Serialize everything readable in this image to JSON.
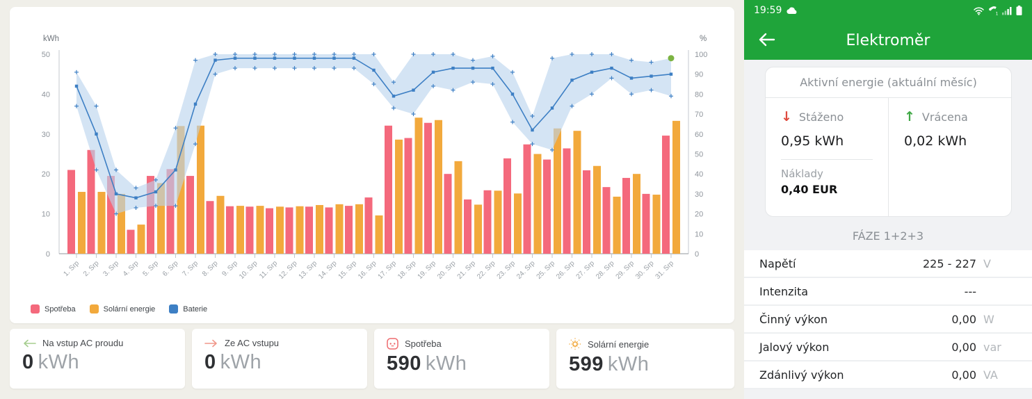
{
  "dashboard": {
    "stat_cards": [
      {
        "icon": "arrow-left-icon",
        "label": "Na vstup AC proudu",
        "value": "0",
        "unit": "kWh"
      },
      {
        "icon": "arrow-right-icon",
        "label": "Ze AC vstupu",
        "value": "0",
        "unit": "kWh"
      },
      {
        "icon": "socket-icon",
        "label": "Spotřeba",
        "value": "590",
        "unit": "kWh"
      },
      {
        "icon": "sun-icon",
        "label": "Solární energie",
        "value": "599",
        "unit": "kWh"
      }
    ]
  },
  "phone": {
    "status_bar": {
      "time": "19:59",
      "icons": [
        "cloud-icon",
        "wifi-icon",
        "wifi-calling-icon",
        "signal-icon",
        "battery-icon"
      ]
    },
    "header": {
      "title": "Elektroměr",
      "back_icon": "back-arrow-icon"
    },
    "energy_card": {
      "title": "Aktivní energie (aktuální měsíc)",
      "left": {
        "arrow": "↓",
        "label": "Stáženo",
        "value": "0,95 kWh",
        "cost_label": "Náklady",
        "cost_value": "0,40 EUR"
      },
      "right": {
        "arrow": "↑",
        "label": "Vrácena",
        "value": "0,02 kWh"
      }
    },
    "phase_section": {
      "title": "FÁZE 1+2+3",
      "rows": [
        {
          "label": "Napětí",
          "value": "225 - 227",
          "unit": "V"
        },
        {
          "label": "Intenzita",
          "value": "---",
          "unit": ""
        },
        {
          "label": "Činný výkon",
          "value": "0,00",
          "unit": "W"
        },
        {
          "label": "Jalový výkon",
          "value": "0,00",
          "unit": "var"
        },
        {
          "label": "Zdánlivý výkon",
          "value": "0,00",
          "unit": "VA"
        }
      ]
    }
  },
  "chart_data": {
    "type": "bar",
    "note": "grouped bars on kWh axis + battery line with min-max band on % axis",
    "categories": [
      "1. Srp",
      "2. Srp",
      "3. Srp",
      "4. Srp",
      "5. Srp",
      "6. Srp",
      "7. Srp",
      "8. Srp",
      "9. Srp",
      "10. Srp",
      "11. Srp",
      "12. Srp",
      "13. Srp",
      "14. Srp",
      "15. Srp",
      "16. Srp",
      "17. Srp",
      "18. Srp",
      "19. Srp",
      "20. Srp",
      "21. Srp",
      "22. Srp",
      "23. Srp",
      "24. Srp",
      "25. Srp",
      "26. Srp",
      "27. Srp",
      "28. Srp",
      "29. Srp",
      "30. Srp",
      "31. Srp"
    ],
    "series": [
      {
        "name": "Spotřeba",
        "type": "bar",
        "axis": "kWh",
        "color": "#f4697c",
        "values": [
          21,
          26,
          19.5,
          6,
          19.5,
          21.2,
          19.5,
          13.2,
          11.9,
          11.8,
          11.4,
          11.6,
          11.8,
          11.6,
          12,
          14.1,
          32.1,
          29,
          32.8,
          20,
          13.6,
          15.9,
          23.9,
          27.4,
          23.6,
          26.4,
          20.9,
          16.7,
          19,
          15,
          29.6
        ]
      },
      {
        "name": "Solární energie",
        "type": "bar",
        "axis": "kWh",
        "color": "#f2a93c",
        "values": [
          15.5,
          15.5,
          15,
          7.3,
          17.7,
          32,
          32.1,
          14.5,
          12,
          12,
          11.8,
          11.9,
          12.2,
          12.4,
          12.4,
          9.6,
          28.6,
          34.1,
          33.5,
          23.2,
          12.3,
          15.8,
          15.1,
          25,
          31.4,
          30.8,
          22,
          14.3,
          20,
          14.8,
          33.3
        ]
      },
      {
        "name": "Baterie",
        "type": "line",
        "axis": "%",
        "color": "#3d7fc4",
        "band_color": "#b9d3ee",
        "values": [
          84,
          60,
          30,
          28,
          31,
          42,
          75,
          97,
          98,
          98,
          98,
          98,
          98,
          98,
          98,
          92,
          79,
          82,
          91,
          93,
          93,
          93,
          80,
          62,
          73,
          87,
          91,
          93,
          88,
          89,
          90
        ],
        "band_min": [
          74,
          42,
          20,
          23,
          24,
          24,
          55,
          90,
          93,
          93,
          93,
          93,
          93,
          93,
          93,
          85,
          73,
          70,
          84,
          82,
          86,
          85,
          66,
          55,
          52,
          74,
          80,
          88,
          80,
          82,
          79
        ],
        "band_max": [
          91,
          74,
          42,
          33,
          37,
          63,
          97,
          100,
          100,
          100,
          100,
          100,
          100,
          100,
          100,
          100,
          86,
          100,
          100,
          100,
          97,
          99,
          91,
          69,
          98,
          100,
          100,
          100,
          97,
          96,
          98
        ]
      }
    ],
    "left_axis": {
      "label": "kWh",
      "min": 0,
      "max": 50,
      "ticks": [
        0,
        10,
        20,
        30,
        40,
        50
      ]
    },
    "right_axis": {
      "label": "%",
      "min": 0,
      "max": 100,
      "ticks": [
        0,
        10,
        20,
        30,
        40,
        50,
        60,
        70,
        80,
        90,
        100
      ]
    },
    "grid": false,
    "legend_position": "bottom-left",
    "end_marker": {
      "category": "31. Srp",
      "value": 98,
      "color": "#7cb342"
    }
  }
}
